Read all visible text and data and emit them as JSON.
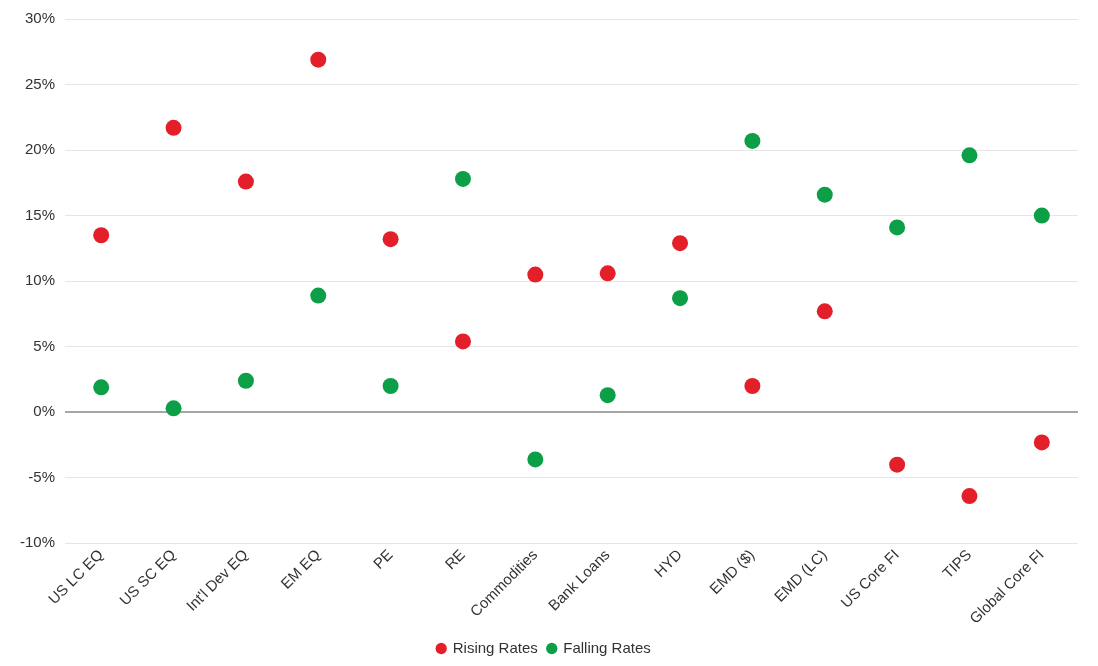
{
  "chart_data": {
    "type": "scatter",
    "categories": [
      "US LC EQ",
      "US SC EQ",
      "Int'l Dev EQ",
      "EM EQ",
      "PE",
      "RE",
      "Commodities",
      "Bank Loans",
      "HYD",
      "EMD ($)",
      "EMD (LC)",
      "US Core FI",
      "TIPS",
      "Global Core FI"
    ],
    "series": [
      {
        "name": "Rising Rates",
        "color": "#e3202a",
        "values": [
          13.5,
          21.7,
          17.6,
          26.9,
          13.2,
          5.4,
          10.5,
          10.6,
          12.9,
          2.0,
          7.7,
          -4.0,
          -6.4,
          -2.3
        ]
      },
      {
        "name": "Falling Rates",
        "color": "#0d9f48",
        "values": [
          1.9,
          0.3,
          2.4,
          8.9,
          2.0,
          17.8,
          -3.6,
          1.3,
          8.7,
          20.7,
          16.6,
          14.1,
          19.6,
          15.0
        ]
      }
    ],
    "ylim": [
      -10,
      30
    ],
    "yticks": [
      {
        "value": -10,
        "label": "-10%"
      },
      {
        "value": -5,
        "label": "-5%"
      },
      {
        "value": 0,
        "label": "0%"
      },
      {
        "value": 5,
        "label": "5%"
      },
      {
        "value": 10,
        "label": "10%"
      },
      {
        "value": 15,
        "label": "15%"
      },
      {
        "value": 20,
        "label": "20%"
      },
      {
        "value": 25,
        "label": "25%"
      },
      {
        "value": 30,
        "label": "30%"
      }
    ],
    "grid": "y",
    "legend": "bottom",
    "marker": "circle"
  }
}
